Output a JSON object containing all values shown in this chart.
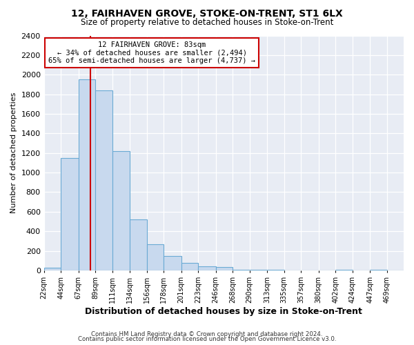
{
  "title": "12, FAIRHAVEN GROVE, STOKE-ON-TRENT, ST1 6LX",
  "subtitle": "Size of property relative to detached houses in Stoke-on-Trent",
  "xlabel": "Distribution of detached houses by size in Stoke-on-Trent",
  "ylabel": "Number of detached properties",
  "bin_labels": [
    "22sqm",
    "44sqm",
    "67sqm",
    "89sqm",
    "111sqm",
    "134sqm",
    "156sqm",
    "178sqm",
    "201sqm",
    "223sqm",
    "246sqm",
    "268sqm",
    "290sqm",
    "313sqm",
    "335sqm",
    "357sqm",
    "380sqm",
    "402sqm",
    "424sqm",
    "447sqm",
    "469sqm"
  ],
  "bin_edges": [
    22,
    44,
    67,
    89,
    111,
    134,
    156,
    178,
    201,
    223,
    246,
    268,
    290,
    313,
    335,
    357,
    380,
    402,
    424,
    447,
    469,
    491
  ],
  "bar_heights": [
    30,
    1150,
    1950,
    1840,
    1220,
    520,
    265,
    150,
    80,
    45,
    35,
    5,
    10,
    5,
    2,
    2,
    0,
    5,
    0,
    5,
    0
  ],
  "bar_color": "#c8d9ee",
  "bar_edge_color": "#6aaad4",
  "vline_x": 83,
  "vline_color": "#cc0000",
  "ylim": [
    0,
    2400
  ],
  "yticks": [
    0,
    200,
    400,
    600,
    800,
    1000,
    1200,
    1400,
    1600,
    1800,
    2000,
    2200,
    2400
  ],
  "annotation_title": "12 FAIRHAVEN GROVE: 83sqm",
  "annotation_line1": "← 34% of detached houses are smaller (2,494)",
  "annotation_line2": "65% of semi-detached houses are larger (4,737) →",
  "annotation_box_color": "#ffffff",
  "annotation_box_edge": "#cc0000",
  "footer1": "Contains HM Land Registry data © Crown copyright and database right 2024.",
  "footer2": "Contains public sector information licensed under the Open Government Licence v3.0.",
  "bg_color": "#ffffff",
  "plot_bg_color": "#e8ecf4"
}
